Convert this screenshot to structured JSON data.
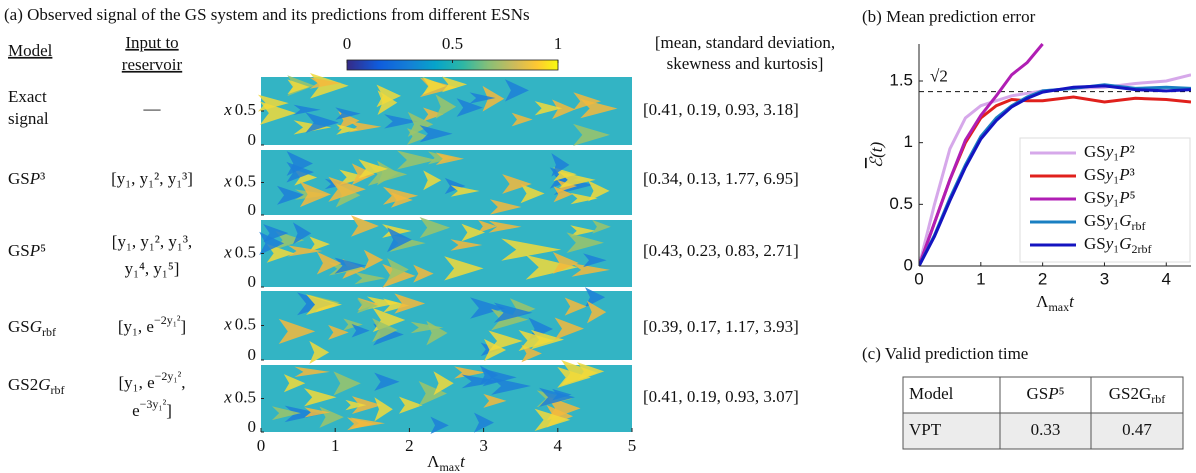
{
  "panel_a": {
    "title": "(a) Observed signal of the GS system and its predictions from different ESNs",
    "model_header": "Model",
    "input_header": [
      "Input to",
      "reservoir"
    ],
    "stats_header": [
      "[mean, standard deviation,",
      "skewness and kurtosis]"
    ],
    "colorbar": {
      "lim": [
        0,
        1
      ],
      "ticks": [
        0,
        0.5,
        1
      ]
    },
    "heatmap": {
      "xlim": [
        0,
        5
      ],
      "xticks": [
        0,
        1,
        2,
        3,
        4,
        5
      ],
      "ylim": [
        0,
        1
      ],
      "yticks": [
        0,
        0.5
      ],
      "ylabel": "x",
      "xlabel": [
        "Λ",
        {
          "t": "max",
          "s": "sub"
        },
        {
          "t": "t",
          "s": "i"
        }
      ]
    },
    "rows": [
      {
        "model": [
          [
            "Exact"
          ],
          [
            "signal"
          ]
        ],
        "input": [
          [
            "—"
          ]
        ],
        "stats": "[0.41, 0.19, 0.93, 3.18]"
      },
      {
        "model": [
          [
            "GS",
            {
              "t": "P",
              "s": "i"
            },
            "³"
          ]
        ],
        "input": [
          [
            "[y₁, y₁², y₁³]"
          ]
        ],
        "stats": "[0.34, 0.13, 1.77, 6.95]"
      },
      {
        "model": [
          [
            "GS",
            {
              "t": "P",
              "s": "i"
            },
            "⁵"
          ]
        ],
        "input": [
          [
            "[y₁, y₁², y₁³,"
          ],
          [
            "y₁⁴, y₁⁵]"
          ]
        ],
        "stats": "[0.43, 0.23, 0.83, 2.71]"
      },
      {
        "model": [
          [
            "GS",
            {
              "t": "G",
              "s": "i"
            },
            {
              "t": "rbf",
              "s": "sub"
            }
          ]
        ],
        "input": [
          [
            "[y₁, e",
            {
              "t": "−2y₁²",
              "s": "sup"
            },
            "]"
          ]
        ],
        "stats": "[0.39, 0.17, 1.17, 3.93]"
      },
      {
        "model": [
          [
            "GS2",
            {
              "t": "G",
              "s": "i"
            },
            {
              "t": "rbf",
              "s": "sub"
            }
          ]
        ],
        "input": [
          [
            "[y₁, e",
            {
              "t": "−2y₁²",
              "s": "sup"
            },
            ","
          ],
          [
            "e",
            {
              "t": "−3y₁²",
              "s": "sup"
            },
            "]"
          ]
        ],
        "stats": "[0.41, 0.19, 0.93, 3.07]"
      }
    ]
  },
  "chart_data": {
    "type": "line",
    "title": "(b) Mean prediction error",
    "xlabel": [
      "Λ",
      {
        "t": "max",
        "s": "sub"
      },
      {
        "t": "t",
        "s": "i"
      }
    ],
    "ylabel": [
      {
        "t": "ℰ",
        "s": "bar"
      },
      {
        "t": "(t)",
        "s": "i"
      }
    ],
    "x": [
      0,
      0.25,
      0.5,
      0.75,
      1,
      1.25,
      1.5,
      1.75,
      2,
      2.5,
      3,
      3.5,
      4,
      4.4
    ],
    "xlim": [
      0,
      4.4
    ],
    "xticks": [
      0,
      1,
      2,
      3,
      4
    ],
    "ylim": [
      0,
      1.8
    ],
    "yticks": [
      0,
      0.5,
      1,
      1.5
    ],
    "reference_line": {
      "value": 1.414,
      "label": "√2"
    },
    "series": [
      {
        "name": [
          "GS",
          {
            "t": "y",
            "s": "i"
          },
          "₁",
          {
            "t": "P",
            "s": "i"
          },
          "²"
        ],
        "color": "#d6a8ea",
        "values": [
          0,
          0.5,
          0.95,
          1.2,
          1.3,
          1.34,
          1.38,
          1.4,
          1.42,
          1.44,
          1.45,
          1.48,
          1.5,
          1.55
        ]
      },
      {
        "name": [
          "GS",
          {
            "t": "y",
            "s": "i"
          },
          "₁",
          {
            "t": "P",
            "s": "i"
          },
          "³"
        ],
        "color": "#e0201c",
        "values": [
          0,
          0.35,
          0.7,
          1.0,
          1.2,
          1.3,
          1.35,
          1.34,
          1.34,
          1.37,
          1.33,
          1.36,
          1.35,
          1.33
        ]
      },
      {
        "name": [
          "GS",
          {
            "t": "y",
            "s": "i"
          },
          "₁",
          {
            "t": "P",
            "s": "i"
          },
          "⁵"
        ],
        "color": "#b01eb4",
        "values": [
          0,
          0.35,
          0.7,
          1.02,
          1.22,
          1.38,
          1.55,
          1.65,
          1.8,
          null,
          null,
          null,
          null,
          null
        ]
      },
      {
        "name": [
          "GS",
          {
            "t": "y",
            "s": "i"
          },
          "₁",
          {
            "t": "G",
            "s": "i"
          },
          {
            "t": "rbf",
            "s": "sub"
          }
        ],
        "color": "#1a7fc2",
        "values": [
          0,
          0.25,
          0.55,
          0.82,
          1.05,
          1.2,
          1.3,
          1.37,
          1.42,
          1.44,
          1.47,
          1.44,
          1.45,
          1.44
        ]
      },
      {
        "name": [
          "GS",
          {
            "t": "y",
            "s": "i"
          },
          "₁",
          {
            "t": "G",
            "s": "i"
          },
          {
            "t": "2rbf",
            "s": "sub"
          }
        ],
        "color": "#1414c0",
        "values": [
          0,
          0.24,
          0.53,
          0.8,
          1.03,
          1.18,
          1.29,
          1.36,
          1.41,
          1.45,
          1.46,
          1.43,
          1.42,
          1.43
        ]
      }
    ]
  },
  "panel_c": {
    "title": "(c) Valid prediction time",
    "header": [
      [
        "Model"
      ],
      [
        "GS",
        {
          "t": "P",
          "s": "i"
        },
        "⁵"
      ],
      [
        "GS2G",
        {
          "t": "rbf",
          "s": "sub"
        }
      ]
    ],
    "row": [
      "VPT",
      "0.33",
      "0.47"
    ]
  }
}
